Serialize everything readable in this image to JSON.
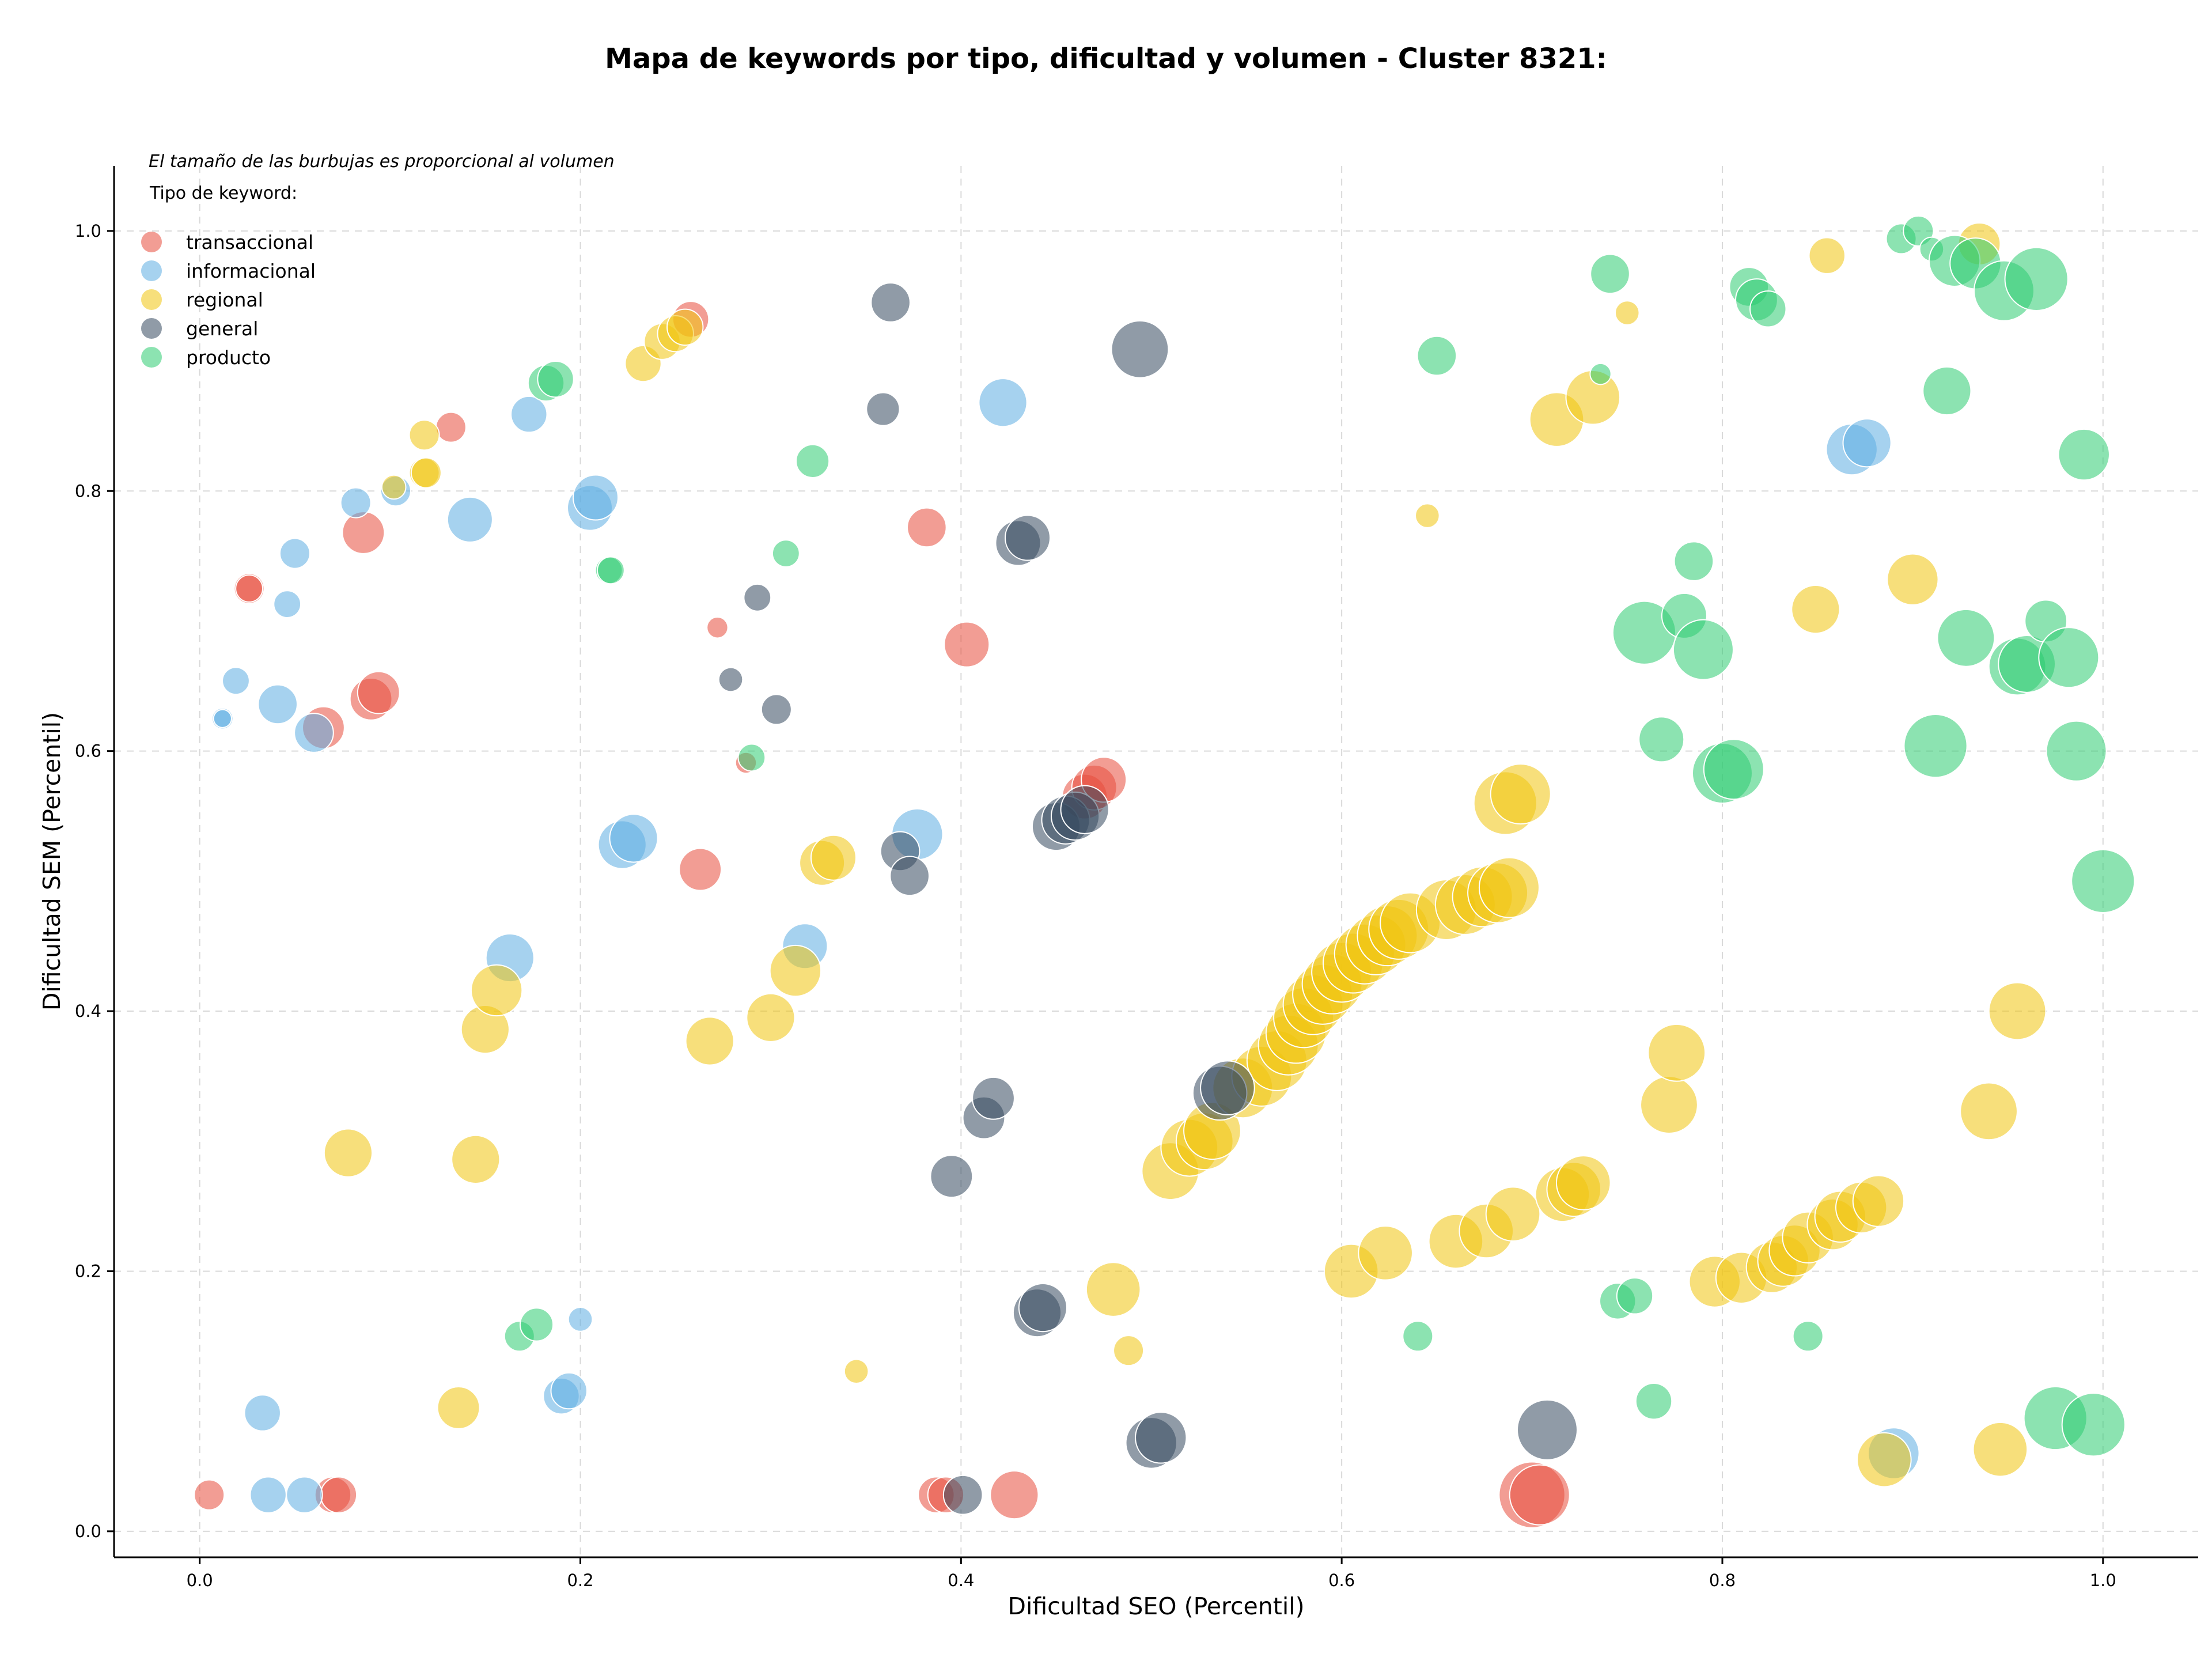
{
  "chart_data": {
    "type": "scatter",
    "title": "Mapa de keywords por tipo, dificultad y volumen - Cluster 8321:",
    "xlabel": "Dificultad SEO (Percentil)",
    "ylabel": "Dificultad SEM (Percentil)",
    "xlim": [
      -0.045,
      1.05
    ],
    "ylim": [
      -0.02,
      1.05
    ],
    "x_ticks": [
      0.0,
      0.2,
      0.4,
      0.6,
      0.8,
      1.0
    ],
    "y_ticks": [
      0.0,
      0.2,
      0.4,
      0.6,
      0.8,
      1.0
    ],
    "x_tick_labels": [
      "0.0",
      "0.2",
      "0.4",
      "0.6",
      "0.8",
      "1.0"
    ],
    "y_tick_labels": [
      "0.0",
      "0.2",
      "0.4",
      "0.6",
      "0.8",
      "1.0"
    ],
    "grid": true,
    "legend_placement": "top-left",
    "note": "El tamaño de las burbujas es proporcional al volumen",
    "legend_title": "Tipo de keyword:",
    "series": [
      {
        "name": "transaccional",
        "color": "#e74c3c",
        "points": [
          [
            0.005,
            0.028,
            0.5
          ],
          [
            0.07,
            0.028,
            0.6
          ],
          [
            0.073,
            0.028,
            0.6
          ],
          [
            0.026,
            0.725,
            0.5
          ],
          [
            0.026,
            0.725,
            0.45
          ],
          [
            0.065,
            0.618,
            0.7
          ],
          [
            0.09,
            0.64,
            0.7
          ],
          [
            0.094,
            0.645,
            0.7
          ],
          [
            0.086,
            0.768,
            0.7
          ],
          [
            0.132,
            0.849,
            0.5
          ],
          [
            0.258,
            0.932,
            0.6
          ],
          [
            0.263,
            0.509,
            0.7
          ],
          [
            0.272,
            0.695,
            0.35
          ],
          [
            0.287,
            0.591,
            0.35
          ],
          [
            0.382,
            0.772,
            0.65
          ],
          [
            0.403,
            0.682,
            0.75
          ],
          [
            0.387,
            0.028,
            0.6
          ],
          [
            0.392,
            0.028,
            0.6
          ],
          [
            0.428,
            0.028,
            0.8
          ],
          [
            0.465,
            0.565,
            0.75
          ],
          [
            0.47,
            0.572,
            0.75
          ],
          [
            0.475,
            0.578,
            0.75
          ],
          [
            0.7,
            0.028,
            1.1
          ],
          [
            0.704,
            0.028,
            1.0
          ]
        ]
      },
      {
        "name": "informacional",
        "color": "#5dade2",
        "points": [
          [
            0.012,
            0.625,
            0.35
          ],
          [
            0.012,
            0.625,
            0.3
          ],
          [
            0.019,
            0.654,
            0.45
          ],
          [
            0.041,
            0.636,
            0.65
          ],
          [
            0.046,
            0.713,
            0.45
          ],
          [
            0.05,
            0.752,
            0.5
          ],
          [
            0.06,
            0.614,
            0.65
          ],
          [
            0.082,
            0.791,
            0.5
          ],
          [
            0.103,
            0.8,
            0.5
          ],
          [
            0.142,
            0.778,
            0.75
          ],
          [
            0.163,
            0.441,
            0.8
          ],
          [
            0.173,
            0.859,
            0.6
          ],
          [
            0.205,
            0.787,
            0.75
          ],
          [
            0.208,
            0.795,
            0.75
          ],
          [
            0.222,
            0.528,
            0.8
          ],
          [
            0.228,
            0.533,
            0.8
          ],
          [
            0.318,
            0.45,
            0.75
          ],
          [
            0.377,
            0.536,
            0.85
          ],
          [
            0.422,
            0.868,
            0.8
          ],
          [
            0.033,
            0.091,
            0.6
          ],
          [
            0.036,
            0.028,
            0.6
          ],
          [
            0.055,
            0.028,
            0.6
          ],
          [
            0.19,
            0.104,
            0.6
          ],
          [
            0.194,
            0.108,
            0.6
          ],
          [
            0.2,
            0.163,
            0.4
          ],
          [
            0.868,
            0.832,
            0.85
          ],
          [
            0.876,
            0.837,
            0.8
          ],
          [
            0.89,
            0.06,
            0.85
          ]
        ]
      },
      {
        "name": "regional",
        "color": "#f1c40f",
        "points": [
          [
            0.078,
            0.291,
            0.8
          ],
          [
            0.102,
            0.803,
            0.4
          ],
          [
            0.118,
            0.843,
            0.5
          ],
          [
            0.118,
            0.814,
            0.5
          ],
          [
            0.119,
            0.814,
            0.5
          ],
          [
            0.136,
            0.095,
            0.7
          ],
          [
            0.145,
            0.286,
            0.8
          ],
          [
            0.15,
            0.386,
            0.8
          ],
          [
            0.156,
            0.416,
            0.85
          ],
          [
            0.233,
            0.898,
            0.6
          ],
          [
            0.243,
            0.915,
            0.6
          ],
          [
            0.25,
            0.921,
            0.6
          ],
          [
            0.255,
            0.926,
            0.6
          ],
          [
            0.268,
            0.377,
            0.8
          ],
          [
            0.3,
            0.395,
            0.8
          ],
          [
            0.313,
            0.431,
            0.85
          ],
          [
            0.327,
            0.514,
            0.75
          ],
          [
            0.333,
            0.518,
            0.75
          ],
          [
            0.345,
            0.123,
            0.4
          ],
          [
            0.48,
            0.186,
            0.9
          ],
          [
            0.488,
            0.139,
            0.5
          ],
          [
            0.51,
            0.277,
            0.95
          ],
          [
            0.52,
            0.295,
            0.95
          ],
          [
            0.528,
            0.3,
            0.95
          ],
          [
            0.532,
            0.308,
            0.95
          ],
          [
            0.548,
            0.341,
            1.0
          ],
          [
            0.558,
            0.35,
            1.0
          ],
          [
            0.566,
            0.362,
            1.0
          ],
          [
            0.572,
            0.374,
            1.0
          ],
          [
            0.576,
            0.383,
            1.0
          ],
          [
            0.58,
            0.395,
            1.0
          ],
          [
            0.585,
            0.405,
            1.0
          ],
          [
            0.59,
            0.413,
            1.0
          ],
          [
            0.595,
            0.421,
            1.0
          ],
          [
            0.6,
            0.43,
            1.0
          ],
          [
            0.606,
            0.437,
            1.0
          ],
          [
            0.612,
            0.444,
            1.0
          ],
          [
            0.618,
            0.451,
            1.0
          ],
          [
            0.624,
            0.458,
            1.0
          ],
          [
            0.63,
            0.463,
            1.0
          ],
          [
            0.636,
            0.468,
            1.0
          ],
          [
            0.655,
            0.478,
            1.0
          ],
          [
            0.665,
            0.482,
            1.0
          ],
          [
            0.674,
            0.488,
            1.0
          ],
          [
            0.682,
            0.491,
            1.0
          ],
          [
            0.688,
            0.495,
            1.0
          ],
          [
            0.686,
            0.56,
            1.05
          ],
          [
            0.694,
            0.567,
            1.0
          ],
          [
            0.605,
            0.2,
            0.9
          ],
          [
            0.623,
            0.214,
            0.9
          ],
          [
            0.66,
            0.223,
            0.9
          ],
          [
            0.676,
            0.231,
            0.9
          ],
          [
            0.69,
            0.244,
            0.9
          ],
          [
            0.716,
            0.259,
            0.9
          ],
          [
            0.722,
            0.263,
            0.9
          ],
          [
            0.727,
            0.268,
            0.9
          ],
          [
            0.713,
            0.855,
            0.9
          ],
          [
            0.732,
            0.872,
            0.9
          ],
          [
            0.645,
            0.781,
            0.4
          ],
          [
            0.75,
            0.937,
            0.4
          ],
          [
            0.772,
            0.328,
            0.95
          ],
          [
            0.776,
            0.368,
            0.95
          ],
          [
            0.796,
            0.192,
            0.85
          ],
          [
            0.81,
            0.195,
            0.85
          ],
          [
            0.826,
            0.203,
            0.85
          ],
          [
            0.832,
            0.208,
            0.85
          ],
          [
            0.838,
            0.216,
            0.85
          ],
          [
            0.845,
            0.226,
            0.85
          ],
          [
            0.858,
            0.236,
            0.85
          ],
          [
            0.862,
            0.242,
            0.85
          ],
          [
            0.873,
            0.249,
            0.85
          ],
          [
            0.882,
            0.254,
            0.85
          ],
          [
            0.849,
            0.709,
            0.8
          ],
          [
            0.855,
            0.981,
            0.6
          ],
          [
            0.9,
            0.732,
            0.85
          ],
          [
            0.94,
            0.323,
            0.95
          ],
          [
            0.955,
            0.4,
            0.95
          ],
          [
            0.946,
            0.063,
            0.9
          ],
          [
            0.885,
            0.055,
            0.9
          ],
          [
            0.935,
            0.99,
            0.7
          ]
        ]
      },
      {
        "name": "general",
        "color": "#34495e",
        "points": [
          [
            0.279,
            0.655,
            0.4
          ],
          [
            0.293,
            0.718,
            0.45
          ],
          [
            0.303,
            0.632,
            0.5
          ],
          [
            0.359,
            0.863,
            0.55
          ],
          [
            0.363,
            0.945,
            0.65
          ],
          [
            0.368,
            0.523,
            0.65
          ],
          [
            0.373,
            0.504,
            0.65
          ],
          [
            0.395,
            0.273,
            0.7
          ],
          [
            0.401,
            0.028,
            0.65
          ],
          [
            0.412,
            0.318,
            0.7
          ],
          [
            0.417,
            0.333,
            0.7
          ],
          [
            0.43,
            0.76,
            0.75
          ],
          [
            0.435,
            0.764,
            0.75
          ],
          [
            0.44,
            0.168,
            0.8
          ],
          [
            0.443,
            0.172,
            0.8
          ],
          [
            0.45,
            0.542,
            0.8
          ],
          [
            0.455,
            0.547,
            0.8
          ],
          [
            0.46,
            0.55,
            0.8
          ],
          [
            0.465,
            0.555,
            0.8
          ],
          [
            0.494,
            0.909,
            0.95
          ],
          [
            0.5,
            0.068,
            0.85
          ],
          [
            0.505,
            0.072,
            0.85
          ],
          [
            0.536,
            0.337,
            0.9
          ],
          [
            0.54,
            0.341,
            0.9
          ],
          [
            0.708,
            0.078,
            1.0
          ]
        ]
      },
      {
        "name": "producto",
        "color": "#2ecc71",
        "points": [
          [
            0.168,
            0.15,
            0.5
          ],
          [
            0.177,
            0.159,
            0.55
          ],
          [
            0.182,
            0.883,
            0.6
          ],
          [
            0.187,
            0.886,
            0.6
          ],
          [
            0.215,
            0.739,
            0.45
          ],
          [
            0.216,
            0.739,
            0.45
          ],
          [
            0.29,
            0.595,
            0.45
          ],
          [
            0.308,
            0.752,
            0.45
          ],
          [
            0.322,
            0.823,
            0.55
          ],
          [
            0.64,
            0.15,
            0.5
          ],
          [
            0.65,
            0.904,
            0.65
          ],
          [
            0.736,
            0.89,
            0.35
          ],
          [
            0.741,
            0.967,
            0.65
          ],
          [
            0.745,
            0.177,
            0.6
          ],
          [
            0.754,
            0.181,
            0.6
          ],
          [
            0.759,
            0.691,
            1.05
          ],
          [
            0.764,
            0.1,
            0.6
          ],
          [
            0.768,
            0.609,
            0.75
          ],
          [
            0.78,
            0.704,
            0.75
          ],
          [
            0.785,
            0.746,
            0.65
          ],
          [
            0.79,
            0.678,
            1.0
          ],
          [
            0.8,
            0.583,
            1.0
          ],
          [
            0.806,
            0.586,
            1.0
          ],
          [
            0.814,
            0.957,
            0.65
          ],
          [
            0.818,
            0.947,
            0.7
          ],
          [
            0.824,
            0.94,
            0.6
          ],
          [
            0.845,
            0.15,
            0.5
          ],
          [
            0.894,
            0.994,
            0.5
          ],
          [
            0.903,
            1.0,
            0.5
          ],
          [
            0.91,
            0.986,
            0.4
          ],
          [
            0.918,
            0.877,
            0.8
          ],
          [
            0.922,
            0.977,
            0.85
          ],
          [
            0.928,
            0.687,
            0.95
          ],
          [
            0.933,
            0.975,
            0.85
          ],
          [
            0.948,
            0.954,
            1.0
          ],
          [
            0.955,
            0.665,
            0.95
          ],
          [
            0.96,
            0.667,
            0.95
          ],
          [
            0.965,
            0.963,
            1.05
          ],
          [
            0.97,
            0.7,
            0.7
          ],
          [
            0.975,
            0.087,
            1.05
          ],
          [
            0.982,
            0.672,
            1.0
          ],
          [
            0.986,
            0.6,
            1.0
          ],
          [
            0.99,
            0.828,
            0.85
          ],
          [
            0.995,
            0.082,
            1.05
          ],
          [
            1.0,
            0.5,
            1.05
          ],
          [
            0.912,
            0.604,
            1.05
          ]
        ]
      }
    ]
  }
}
